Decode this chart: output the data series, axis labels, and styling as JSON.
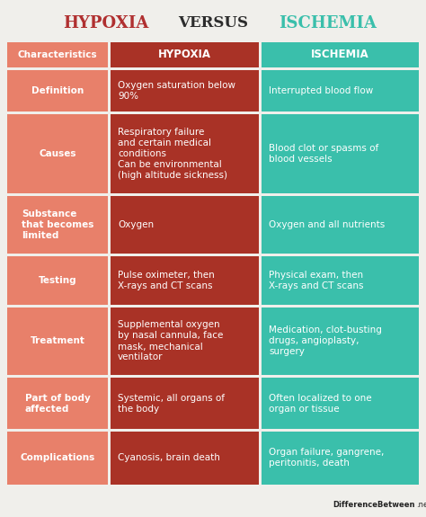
{
  "title_left": "HYPOXIA",
  "title_mid": "VERSUS",
  "title_right": "ISCHEMIA",
  "title_left_color": "#b03030",
  "title_mid_color": "#2c2c2c",
  "title_right_color": "#3abfab",
  "col1_header": "Characteristics",
  "col2_header": "HYPOXIA",
  "col3_header": "ISCHEMIA",
  "col1_header_color": "#e8806a",
  "col2_header_color": "#a93226",
  "col3_header_color": "#3abfab",
  "row_bg_col1": "#e8806a",
  "row_bg_col2": "#a93226",
  "row_bg_col3": "#3abfab",
  "separator_color": "#f0f0ee",
  "bg_color": "#f0efeb",
  "rows": [
    {
      "char": "Definition",
      "hyp": "Oxygen saturation below\n90%",
      "isc": "Interrupted blood flow"
    },
    {
      "char": "Causes",
      "hyp": "Respiratory failure\nand certain medical\nconditions\nCan be environmental\n(high altitude sickness)",
      "isc": "Blood clot or spasms of\nblood vessels"
    },
    {
      "char": "Substance\nthat becomes\nlimited",
      "hyp": "Oxygen",
      "isc": "Oxygen and all nutrients"
    },
    {
      "char": "Testing",
      "hyp": "Pulse oximeter, then\nX-rays and CT scans",
      "isc": "Physical exam, then\nX-rays and CT scans"
    },
    {
      "char": "Treatment",
      "hyp": "Supplemental oxygen\nby nasal cannula, face\nmask, mechanical\nventilator",
      "isc": "Medication, clot-busting\ndrugs, angioplasty,\nsurgery"
    },
    {
      "char": "Part of body\naffected",
      "hyp": "Systemic, all organs of\nthe body",
      "isc": "Often localized to one\norgan or tissue"
    },
    {
      "char": "Complications",
      "hyp": "Cyanosis, brain death",
      "isc": "Organ failure, gangrene,\nperitonitis, death"
    }
  ],
  "watermark_bold": "DifferenceBetween",
  "watermark_light": ".net"
}
